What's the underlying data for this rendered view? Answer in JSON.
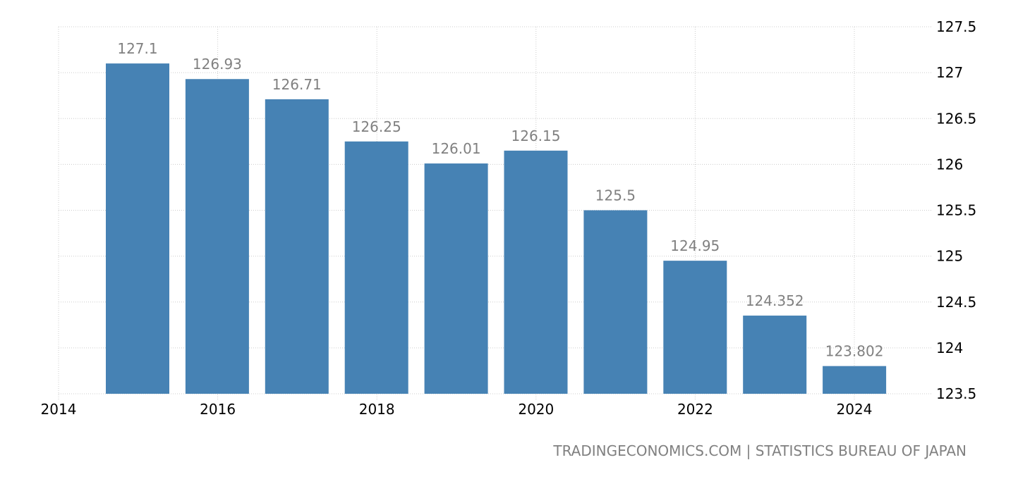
{
  "chart_data": {
    "type": "bar",
    "title": "",
    "xlabel": "",
    "ylabel": "",
    "categories": [
      "2015",
      "2016",
      "2017",
      "2018",
      "2019",
      "2020",
      "2021",
      "2022",
      "2023",
      "2024"
    ],
    "values": [
      127.1,
      126.93,
      126.71,
      126.25,
      126.01,
      126.15,
      125.5,
      124.95,
      124.352,
      123.802
    ],
    "value_labels": [
      "127.1",
      "126.93",
      "126.71",
      "126.25",
      "126.01",
      "126.15",
      "125.5",
      "124.95",
      "124.352",
      "123.802"
    ],
    "ylim": [
      123.5,
      127.5
    ],
    "yticks": [
      "123.5",
      "124",
      "124.5",
      "125",
      "125.5",
      "126",
      "126.5",
      "127",
      "127.5"
    ],
    "xticks": [
      "2014",
      "2016",
      "2018",
      "2020",
      "2022",
      "2024"
    ],
    "xrange": [
      2014,
      2025
    ],
    "y_axis_position": "right",
    "grid": true,
    "legend": null,
    "bar_color": "#4682b4",
    "label_color": "#808080",
    "grid_color": "#cccccc"
  },
  "footer": {
    "source": "TRADINGECONOMICS.COM | STATISTICS BUREAU OF JAPAN"
  }
}
